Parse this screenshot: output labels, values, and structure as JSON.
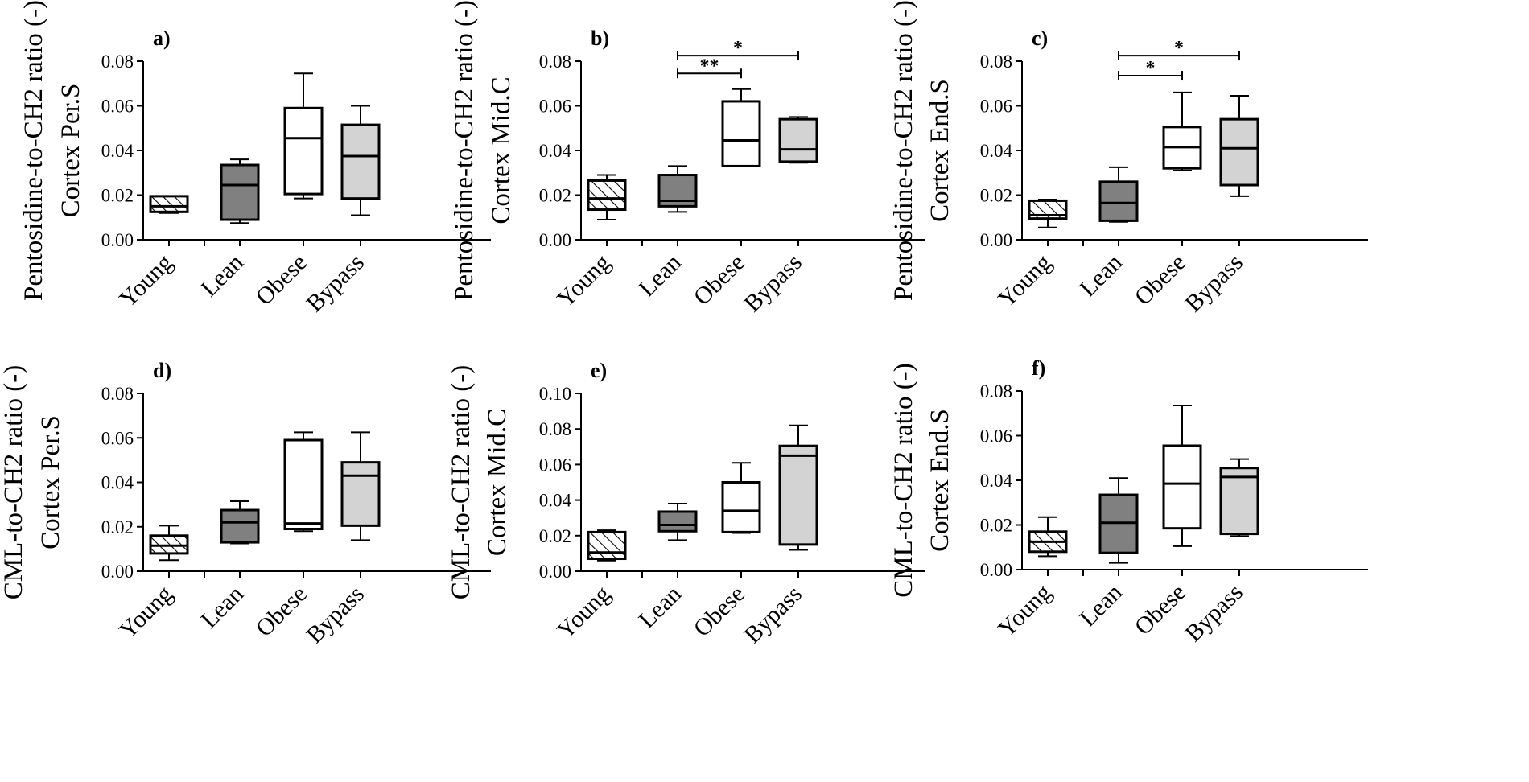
{
  "chart_data": [
    {
      "type": "boxplot",
      "panel": "a)",
      "ylabel_lines": [
        "Pentosidine-to-CH2 ratio (-)",
        "Cortex Per.S"
      ],
      "ylim": [
        0,
        0.08
      ],
      "yticks": [
        "0.00",
        "0.02",
        "0.04",
        "0.06",
        "0.08"
      ],
      "groups": [
        {
          "name": "Young",
          "fill": "hatch",
          "min": 0.012,
          "q1": 0.0125,
          "median": 0.015,
          "q3": 0.0195,
          "max": 0.0195
        },
        {
          "name": "Lean",
          "fill": "#808080",
          "min": 0.0075,
          "q1": 0.009,
          "median": 0.0245,
          "q3": 0.0335,
          "max": 0.036
        },
        {
          "name": "Obese",
          "fill": "#ffffff",
          "min": 0.0185,
          "q1": 0.0205,
          "median": 0.0455,
          "q3": 0.059,
          "max": 0.0745
        },
        {
          "name": "Bypass",
          "fill": "#d3d3d3",
          "min": 0.011,
          "q1": 0.0185,
          "median": 0.0375,
          "q3": 0.0515,
          "max": 0.06
        }
      ],
      "significance": []
    },
    {
      "type": "boxplot",
      "panel": "b)",
      "ylabel_lines": [
        "Pentosidine-to-CH2 ratio (-)",
        "Cortex Mid.C"
      ],
      "ylim": [
        0,
        0.08
      ],
      "yticks": [
        "0.00",
        "0.02",
        "0.04",
        "0.06",
        "0.08"
      ],
      "groups": [
        {
          "name": "Young",
          "fill": "hatch",
          "min": 0.009,
          "q1": 0.0135,
          "median": 0.0185,
          "q3": 0.0265,
          "max": 0.029
        },
        {
          "name": "Lean",
          "fill": "#808080",
          "min": 0.0125,
          "q1": 0.015,
          "median": 0.0175,
          "q3": 0.029,
          "max": 0.033
        },
        {
          "name": "Obese",
          "fill": "#ffffff",
          "min": 0.033,
          "q1": 0.033,
          "median": 0.0445,
          "q3": 0.062,
          "max": 0.0675
        },
        {
          "name": "Bypass",
          "fill": "#d3d3d3",
          "min": 0.0345,
          "q1": 0.035,
          "median": 0.0405,
          "q3": 0.054,
          "max": 0.055
        }
      ],
      "significance": [
        {
          "from": 1,
          "to": 2,
          "label": "**",
          "y": 0.0745
        },
        {
          "from": 1,
          "to": 3,
          "label": "*",
          "y": 0.0825
        }
      ]
    },
    {
      "type": "boxplot",
      "panel": "c)",
      "ylabel_lines": [
        "Pentosidine-to-CH2 ratio (-)",
        "Cortex End.S"
      ],
      "ylim": [
        0,
        0.08
      ],
      "yticks": [
        "0.00",
        "0.02",
        "0.04",
        "0.06",
        "0.08"
      ],
      "groups": [
        {
          "name": "Young",
          "fill": "hatch",
          "min": 0.0055,
          "q1": 0.0095,
          "median": 0.011,
          "q3": 0.0175,
          "max": 0.018
        },
        {
          "name": "Lean",
          "fill": "#808080",
          "min": 0.008,
          "q1": 0.0085,
          "median": 0.0165,
          "q3": 0.026,
          "max": 0.0325
        },
        {
          "name": "Obese",
          "fill": "#ffffff",
          "min": 0.031,
          "q1": 0.032,
          "median": 0.0415,
          "q3": 0.0505,
          "max": 0.066
        },
        {
          "name": "Bypass",
          "fill": "#d3d3d3",
          "min": 0.0195,
          "q1": 0.0245,
          "median": 0.041,
          "q3": 0.054,
          "max": 0.0645
        }
      ],
      "significance": [
        {
          "from": 1,
          "to": 2,
          "label": "*",
          "y": 0.0735
        },
        {
          "from": 1,
          "to": 3,
          "label": "*",
          "y": 0.0825
        }
      ]
    },
    {
      "type": "boxplot",
      "panel": "d)",
      "ylabel_lines": [
        "CML-to-CH2 ratio (-)",
        "Cortex Per.S"
      ],
      "ylim": [
        0,
        0.08
      ],
      "yticks": [
        "0.00",
        "0.02",
        "0.04",
        "0.06",
        "0.08"
      ],
      "groups": [
        {
          "name": "Young",
          "fill": "hatch",
          "min": 0.005,
          "q1": 0.008,
          "median": 0.0115,
          "q3": 0.016,
          "max": 0.0205
        },
        {
          "name": "Lean",
          "fill": "#808080",
          "min": 0.0125,
          "q1": 0.013,
          "median": 0.022,
          "q3": 0.0275,
          "max": 0.0315
        },
        {
          "name": "Obese",
          "fill": "#ffffff",
          "min": 0.018,
          "q1": 0.019,
          "median": 0.0215,
          "q3": 0.059,
          "max": 0.0625
        },
        {
          "name": "Bypass",
          "fill": "#d3d3d3",
          "min": 0.014,
          "q1": 0.0205,
          "median": 0.043,
          "q3": 0.049,
          "max": 0.0625
        }
      ],
      "significance": []
    },
    {
      "type": "boxplot",
      "panel": "e)",
      "ylabel_lines": [
        "CML-to-CH2 ratio (-)",
        "Cortex Mid.C"
      ],
      "ylim": [
        0,
        0.1
      ],
      "yticks": [
        "0.00",
        "0.02",
        "0.04",
        "0.06",
        "0.08",
        "0.10"
      ],
      "groups": [
        {
          "name": "Young",
          "fill": "hatch",
          "min": 0.006,
          "q1": 0.007,
          "median": 0.0105,
          "q3": 0.022,
          "max": 0.023
        },
        {
          "name": "Lean",
          "fill": "#808080",
          "min": 0.0175,
          "q1": 0.0225,
          "median": 0.026,
          "q3": 0.0335,
          "max": 0.038
        },
        {
          "name": "Obese",
          "fill": "#ffffff",
          "min": 0.0215,
          "q1": 0.022,
          "median": 0.034,
          "q3": 0.05,
          "max": 0.061
        },
        {
          "name": "Bypass",
          "fill": "#d3d3d3",
          "min": 0.012,
          "q1": 0.015,
          "median": 0.065,
          "q3": 0.0705,
          "max": 0.082
        }
      ],
      "significance": []
    },
    {
      "type": "boxplot",
      "panel": "f)",
      "ylabel_lines": [
        "CML-to-CH2 ratio (-)",
        "Cortex End.S"
      ],
      "ylim": [
        0,
        0.08
      ],
      "yticks": [
        "0.00",
        "0.02",
        "0.04",
        "0.06",
        "0.08"
      ],
      "groups": [
        {
          "name": "Young",
          "fill": "hatch",
          "min": 0.006,
          "q1": 0.008,
          "median": 0.0125,
          "q3": 0.017,
          "max": 0.0235
        },
        {
          "name": "Lean",
          "fill": "#808080",
          "min": 0.003,
          "q1": 0.0075,
          "median": 0.021,
          "q3": 0.0335,
          "max": 0.041
        },
        {
          "name": "Obese",
          "fill": "#ffffff",
          "min": 0.0105,
          "q1": 0.0185,
          "median": 0.0385,
          "q3": 0.0555,
          "max": 0.0735
        },
        {
          "name": "Bypass",
          "fill": "#d3d3d3",
          "min": 0.015,
          "q1": 0.016,
          "median": 0.0415,
          "q3": 0.0455,
          "max": 0.0495
        }
      ],
      "significance": []
    }
  ]
}
